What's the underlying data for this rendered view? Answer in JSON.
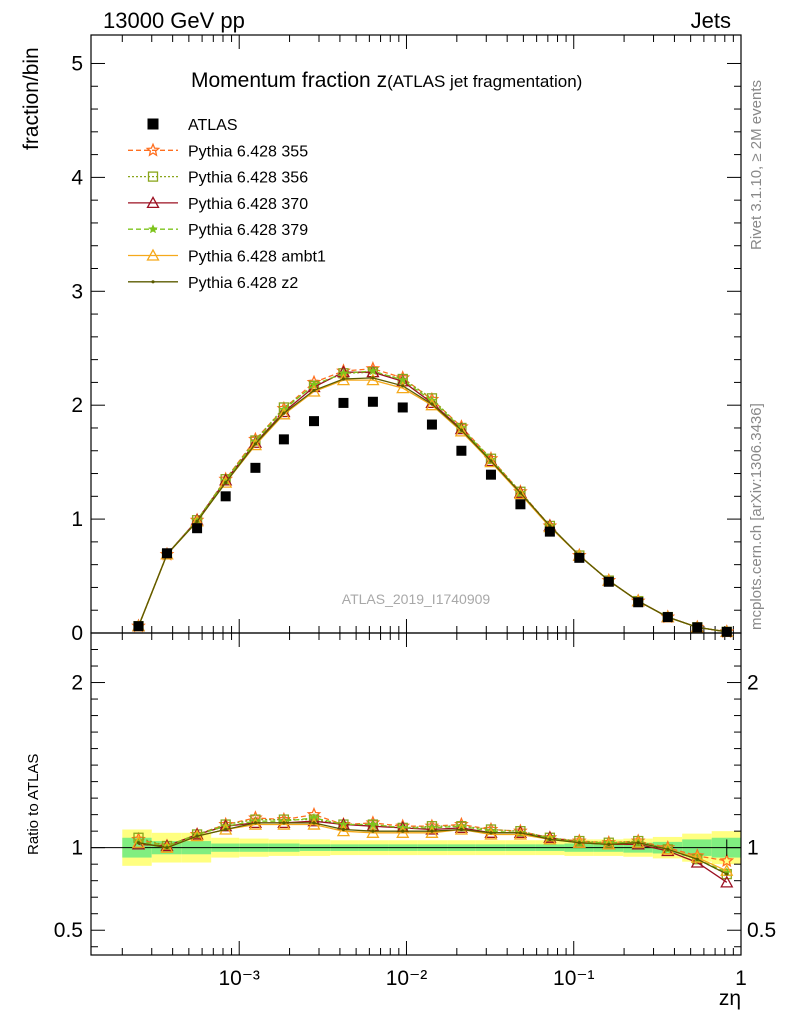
{
  "header": {
    "energy_label": "13000 GeV pp",
    "process_label": "Jets",
    "title_main": "Momentum fraction z",
    "title_sub": "(ATLAS jet fragmentation)",
    "watermark": "ATLAS_2019_I1740909",
    "side_rivet": "Rivet 3.1.10, ≥ 2M events",
    "side_mcplots": "mcplots.cern.ch [arXiv:1306.3436]"
  },
  "colors": {
    "atlas": "#000000",
    "p355": "#ff6f1f",
    "p356": "#8aa61c",
    "p370": "#9c1022",
    "p379": "#7dc41c",
    "ambt1": "#f5a91b",
    "z2": "#5b5b00",
    "band_inner": "#80ee80",
    "band_outer": "#ffff80"
  },
  "chart_data": [
    {
      "panel": "main",
      "type": "scatter",
      "title": "Momentum fraction z(ATLAS jet fragmentation)",
      "xlabel": "zη",
      "ylabel": "fraction/bin",
      "xscale": "log",
      "xlim": [
        0.00013,
        1.0
      ],
      "ylim": [
        0,
        5.25
      ],
      "yticks": [
        0,
        1,
        2,
        3,
        4,
        5
      ],
      "ytick_labels": [
        "0",
        "1",
        "2",
        "3",
        "4",
        "5"
      ],
      "legend_position": "top-left",
      "x": [
        0.00025,
        0.00037,
        0.00056,
        0.00083,
        0.00125,
        0.00185,
        0.0028,
        0.0042,
        0.0063,
        0.0095,
        0.0142,
        0.0213,
        0.032,
        0.048,
        0.072,
        0.108,
        0.162,
        0.243,
        0.365,
        0.548,
        0.822
      ],
      "series": [
        {
          "name": "ATLAS",
          "key": "atlas",
          "marker": "filled-square",
          "line": "none",
          "values": [
            0.06,
            0.7,
            0.92,
            1.2,
            1.45,
            1.7,
            1.86,
            2.02,
            2.03,
            1.98,
            1.83,
            1.6,
            1.39,
            1.13,
            0.89,
            0.66,
            0.45,
            0.27,
            0.14,
            0.05,
            0.01
          ],
          "errors": [
            0.005,
            0.02,
            0.02,
            0.02,
            0.02,
            0.02,
            0.02,
            0.02,
            0.02,
            0.02,
            0.02,
            0.02,
            0.015,
            0.012,
            0.01,
            0.008,
            0.006,
            0.005,
            0.004,
            0.003,
            0.002
          ]
        },
        {
          "name": "Pythia 6.428 355",
          "key": "p355",
          "marker": "open-star",
          "line": "dashed",
          "values": [
            0.06,
            0.69,
            0.99,
            1.35,
            1.7,
            1.97,
            2.2,
            2.3,
            2.32,
            2.24,
            2.05,
            1.81,
            1.53,
            1.24,
            0.94,
            0.68,
            0.46,
            0.28,
            0.14,
            0.05,
            0.01
          ]
        },
        {
          "name": "Pythia 6.428 356",
          "key": "p356",
          "marker": "open-square",
          "line": "dotted",
          "values": [
            0.06,
            0.69,
            0.99,
            1.35,
            1.69,
            1.98,
            2.17,
            2.28,
            2.29,
            2.23,
            2.06,
            1.8,
            1.53,
            1.24,
            0.94,
            0.68,
            0.46,
            0.28,
            0.14,
            0.05,
            0.01
          ]
        },
        {
          "name": "Pythia 6.428 370",
          "key": "p370",
          "marker": "open-triangle",
          "line": "solid",
          "values": [
            0.06,
            0.69,
            0.99,
            1.34,
            1.67,
            1.94,
            2.16,
            2.29,
            2.29,
            2.21,
            2.02,
            1.79,
            1.51,
            1.23,
            0.94,
            0.68,
            0.46,
            0.28,
            0.14,
            0.05,
            0.01
          ]
        },
        {
          "name": "Pythia 6.428 379",
          "key": "p379",
          "marker": "star",
          "line": "dashed",
          "values": [
            0.06,
            0.69,
            0.99,
            1.34,
            1.68,
            1.96,
            2.18,
            2.28,
            2.3,
            2.22,
            2.04,
            1.8,
            1.52,
            1.23,
            0.94,
            0.68,
            0.46,
            0.28,
            0.14,
            0.05,
            0.01
          ]
        },
        {
          "name": "Pythia 6.428 ambt1",
          "key": "ambt1",
          "marker": "open-triangle",
          "line": "solid",
          "values": [
            0.06,
            0.69,
            0.98,
            1.32,
            1.65,
            1.92,
            2.12,
            2.22,
            2.22,
            2.15,
            2.0,
            1.77,
            1.5,
            1.22,
            0.93,
            0.68,
            0.46,
            0.28,
            0.14,
            0.05,
            0.01
          ]
        },
        {
          "name": "Pythia 6.428 z2",
          "key": "z2",
          "marker": "dot",
          "line": "solid",
          "values": [
            0.06,
            0.69,
            0.98,
            1.32,
            1.66,
            1.93,
            2.13,
            2.23,
            2.24,
            2.17,
            2.01,
            1.78,
            1.51,
            1.23,
            0.94,
            0.68,
            0.46,
            0.28,
            0.14,
            0.05,
            0.01
          ]
        }
      ]
    },
    {
      "panel": "ratio",
      "type": "line",
      "ylabel": "Ratio to ATLAS",
      "xlabel": "zη",
      "xscale": "log",
      "xlim": [
        0.00013,
        1.0
      ],
      "ylim": [
        0.35,
        2.3
      ],
      "yticks": [
        0.5,
        1,
        2
      ],
      "ytick_labels": [
        "0.5",
        "1",
        "2"
      ],
      "xtick_labels": [
        "10⁻³",
        "10⁻²",
        "10⁻¹",
        "1"
      ],
      "x": [
        0.00025,
        0.00037,
        0.00056,
        0.00083,
        0.00125,
        0.00185,
        0.0028,
        0.0042,
        0.0063,
        0.0095,
        0.0142,
        0.0213,
        0.032,
        0.048,
        0.072,
        0.108,
        0.162,
        0.243,
        0.365,
        0.548,
        0.822
      ],
      "bin_edges": [
        0.0002,
        0.0003,
        0.00045,
        0.00068,
        0.001,
        0.0015,
        0.0023,
        0.0035,
        0.0052,
        0.0078,
        0.0117,
        0.0175,
        0.026,
        0.039,
        0.059,
        0.088,
        0.132,
        0.198,
        0.297,
        0.445,
        0.668,
        1.0
      ],
      "band_inner": [
        0.06,
        0.04,
        0.04,
        0.025,
        0.025,
        0.025,
        0.02,
        0.02,
        0.02,
        0.02,
        0.02,
        0.02,
        0.02,
        0.02,
        0.02,
        0.025,
        0.025,
        0.03,
        0.035,
        0.05,
        0.06
      ],
      "band_outer": [
        0.11,
        0.09,
        0.09,
        0.06,
        0.055,
        0.05,
        0.05,
        0.045,
        0.045,
        0.045,
        0.045,
        0.045,
        0.045,
        0.045,
        0.045,
        0.05,
        0.05,
        0.055,
        0.065,
        0.085,
        0.1
      ],
      "series": [
        {
          "name": "Pythia 6.428 355",
          "key": "p355",
          "values": [
            1.05,
            1.01,
            1.08,
            1.14,
            1.18,
            1.17,
            1.2,
            1.14,
            1.15,
            1.13,
            1.13,
            1.14,
            1.11,
            1.1,
            1.06,
            1.04,
            1.03,
            1.04,
            1.0,
            0.95,
            0.92
          ]
        },
        {
          "name": "Pythia 6.428 356",
          "key": "p356",
          "values": [
            1.06,
            1.01,
            1.08,
            1.14,
            1.17,
            1.17,
            1.17,
            1.14,
            1.14,
            1.12,
            1.13,
            1.13,
            1.11,
            1.1,
            1.06,
            1.04,
            1.03,
            1.04,
            0.99,
            0.93,
            0.84
          ]
        },
        {
          "name": "Pythia 6.428 370",
          "key": "p370",
          "values": [
            1.02,
            1.01,
            1.08,
            1.13,
            1.15,
            1.15,
            1.16,
            1.14,
            1.13,
            1.12,
            1.11,
            1.12,
            1.09,
            1.09,
            1.06,
            1.03,
            1.02,
            1.02,
            0.98,
            0.91,
            0.79
          ]
        },
        {
          "name": "Pythia 6.428 379",
          "key": "p379",
          "values": [
            1.04,
            1.01,
            1.08,
            1.13,
            1.16,
            1.16,
            1.18,
            1.14,
            1.14,
            1.12,
            1.12,
            1.13,
            1.1,
            1.09,
            1.06,
            1.03,
            1.03,
            1.03,
            0.99,
            0.93,
            0.85
          ]
        },
        {
          "name": "Pythia 6.428 ambt1",
          "key": "ambt1",
          "values": [
            1.03,
            1.0,
            1.07,
            1.11,
            1.14,
            1.14,
            1.14,
            1.1,
            1.09,
            1.09,
            1.09,
            1.11,
            1.08,
            1.08,
            1.05,
            1.03,
            1.02,
            1.03,
            0.99,
            0.94,
            0.86
          ]
        },
        {
          "name": "Pythia 6.428 z2",
          "key": "z2",
          "values": [
            1.03,
            1.0,
            1.07,
            1.11,
            1.15,
            1.15,
            1.15,
            1.11,
            1.1,
            1.1,
            1.1,
            1.11,
            1.09,
            1.09,
            1.05,
            1.03,
            1.02,
            1.03,
            0.99,
            0.93,
            0.84
          ]
        }
      ]
    }
  ]
}
